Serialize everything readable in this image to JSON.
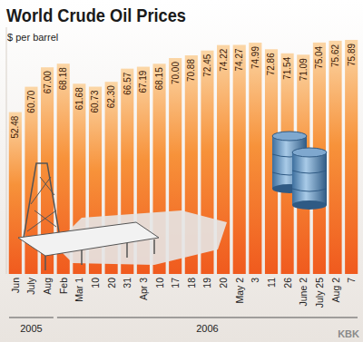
{
  "chart_data": {
    "type": "bar",
    "title": "World Crude Oil Prices",
    "subtitle": "$ per barrel",
    "categories": [
      "Jun",
      "July",
      "Aug",
      "Feb",
      "Mar 1",
      "10",
      "20",
      "31",
      "Apr 3",
      "10",
      "17",
      "18",
      "19",
      "20",
      "May 2",
      "3",
      "11",
      "26",
      "June 2",
      "July 25",
      "Aug 2",
      "7"
    ],
    "values": [
      52.48,
      60.7,
      67.0,
      68.18,
      61.68,
      60.73,
      62.3,
      66.57,
      67.19,
      68.15,
      70.0,
      70.88,
      72.45,
      74.22,
      74.27,
      74.99,
      72.86,
      71.54,
      71.09,
      75.04,
      75.62,
      75.89
    ],
    "value_labels": [
      "52.48",
      "60.70",
      "67.00",
      "68.18",
      "61.68",
      "60.73",
      "62.30",
      "66.57",
      "67.19",
      "68.15",
      "70.00",
      "70.88",
      "72.45",
      "74.22",
      "74.27",
      "74.99",
      "72.86",
      "71.54",
      "71.09",
      "75.04",
      "75.62",
      "75.89"
    ],
    "x_groups": [
      {
        "label": "2005",
        "count": 3
      },
      {
        "label": "2006",
        "count": 19
      }
    ],
    "source": "KBK",
    "color": "#f05a1e",
    "ylim": [
      0,
      80
    ],
    "data_labels": true,
    "tick_labels": "x",
    "grid": false
  }
}
